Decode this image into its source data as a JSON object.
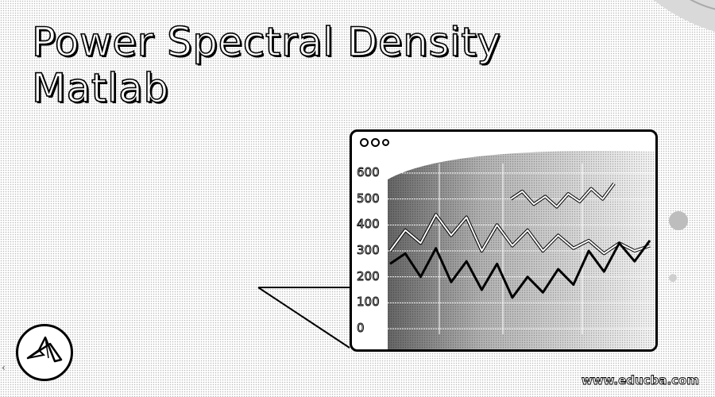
{
  "title": {
    "line1": "Power Spectral Density",
    "line2": "Matlab"
  },
  "chart_window": {
    "y_ticks": [
      "600",
      "500",
      "400",
      "300",
      "200",
      "100",
      "0"
    ]
  },
  "logo": {
    "icon": "matlab-membrane-logo"
  },
  "footer": {
    "website": "www.educba.com"
  },
  "chart_data": {
    "type": "line",
    "ylim": [
      0,
      600
    ],
    "series": [
      {
        "values": [
          300,
          380,
          330,
          440,
          360,
          430,
          300,
          400,
          320,
          380,
          300,
          360,
          310,
          340,
          290,
          330,
          300,
          320
        ]
      },
      {
        "values": [
          250,
          290,
          200,
          310,
          180,
          260,
          150,
          250,
          120,
          200,
          140,
          230,
          170,
          300,
          220,
          330,
          260,
          340
        ]
      },
      {
        "values": [
          500,
          530,
          480,
          510,
          470,
          520,
          490,
          540,
          500,
          560
        ]
      }
    ]
  }
}
